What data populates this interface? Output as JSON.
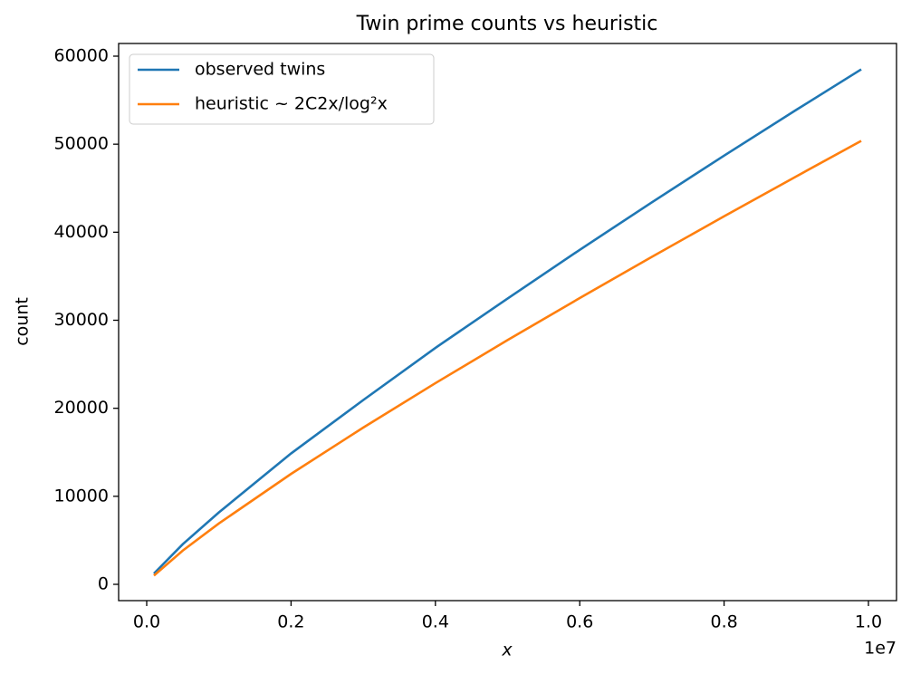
{
  "chart_data": {
    "type": "line",
    "title": "Twin prime counts vs heuristic",
    "xlabel": "x",
    "ylabel": "count",
    "x_offset_label": "1e7",
    "x": [
      100000,
      500000,
      1000000,
      2000000,
      3000000,
      4000000,
      5000000,
      6000000,
      7000000,
      8000000,
      9000000,
      9900000
    ],
    "series": [
      {
        "name": "observed twins",
        "color": "#1f77b4",
        "values": [
          1224,
          4565,
          8169,
          14871,
          20932,
          26860,
          32463,
          38000,
          43400,
          48700,
          53900,
          58500
        ]
      },
      {
        "name": "heuristic ~ 2C2x/log²x",
        "color": "#ff7f0e",
        "values": [
          996,
          3834,
          6917,
          12545,
          17808,
          22854,
          27746,
          32522,
          37204,
          41806,
          46343,
          50377
        ]
      }
    ],
    "xlim": [
      -389000,
      10389000
    ],
    "ylim": [
      -1850,
      61440
    ],
    "xticks": [
      {
        "value": 0,
        "label": "0.0"
      },
      {
        "value": 2000000,
        "label": "0.2"
      },
      {
        "value": 4000000,
        "label": "0.4"
      },
      {
        "value": 6000000,
        "label": "0.6"
      },
      {
        "value": 8000000,
        "label": "0.8"
      },
      {
        "value": 10000000,
        "label": "1.0"
      }
    ],
    "yticks": [
      0,
      10000,
      20000,
      30000,
      40000,
      50000,
      60000
    ],
    "grid": false,
    "legend": "upper left"
  }
}
